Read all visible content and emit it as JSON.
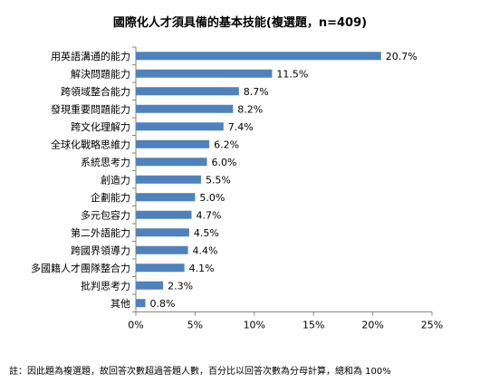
{
  "chart_data": {
    "type": "bar",
    "orientation": "horizontal",
    "title": "國際化人才須具備的基本技能(複選題，n=409)",
    "categories": [
      "用英語溝通的能力",
      "解決問題能力",
      "跨領域整合能力",
      "發現重要問題能力",
      "跨文化理解力",
      "全球化戰略思維力",
      "系統思考力",
      "創造力",
      "企劃能力",
      "多元包容力",
      "第二外語能力",
      "跨國界領導力",
      "多國籍人才團隊整合力",
      "批判思考力",
      "其他"
    ],
    "values": [
      20.7,
      11.5,
      8.7,
      8.2,
      7.4,
      6.2,
      6.0,
      5.5,
      5.0,
      4.7,
      4.5,
      4.4,
      4.1,
      2.3,
      0.8
    ],
    "value_labels": [
      "20.7%",
      "11.5%",
      "8.7%",
      "8.2%",
      "7.4%",
      "6.2%",
      "6.0%",
      "5.5%",
      "5.0%",
      "4.7%",
      "4.5%",
      "4.4%",
      "4.1%",
      "2.3%",
      "0.8%"
    ],
    "x_ticks": [
      0,
      5,
      10,
      15,
      20,
      25
    ],
    "x_tick_labels": [
      "0%",
      "5%",
      "10%",
      "15%",
      "20%",
      "25%"
    ],
    "xlim": [
      0,
      25
    ],
    "xlabel": "",
    "ylabel": "",
    "grid": false,
    "legend": "none",
    "bar_color": "#4f81bd"
  },
  "note": "註：因此題為複選題，故回答次數超過答題人數，百分比以回答次數為分母計算，總和為 100%"
}
